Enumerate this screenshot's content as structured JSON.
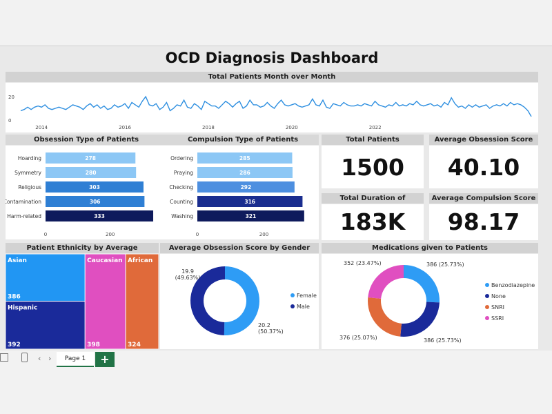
{
  "dashboard": {
    "title": "OCD Diagnosis Dashboard"
  },
  "headers": {
    "monthly": "Total Patients Month over Month",
    "obsession": "Obsession Type of Patients",
    "compulsion": "Compulsion Type of Patients",
    "total_patients": "Total Patients",
    "avg_obsession": "Average Obsession Score",
    "total_duration": "Total Duration of Symptoms",
    "avg_compulsion": "Average Compulsion Score",
    "ethnicity": "Patient Ethnicity by Average Obsession Score",
    "gender": "Average Obsession Score by Gender",
    "medications": "Medications given to Patients"
  },
  "kpis": {
    "total_patients": "1500",
    "avg_obsession": "40.10",
    "total_duration": "183K",
    "avg_compulsion": "98.17"
  },
  "footer": {
    "page_tab": "Page 1",
    "add_label": "+"
  },
  "colors": {
    "line": "#2e8fe0",
    "bars_light": "#8cc7f5",
    "bars_mid": "#2f7fd4",
    "bars_dark": "#1a2d8f",
    "bars_darkest": "#0e1a5c",
    "asian": "#2196f3",
    "hispanic": "#1a2a9a",
    "caucasian": "#e04fc0",
    "african": "#e06a3a",
    "female": "#2e9cf5",
    "male": "#1a2a9a",
    "benzo": "#2e9cf5",
    "none": "#1a2a9a",
    "snri": "#e06a3a",
    "ssri": "#e04fc0"
  },
  "chart_data": [
    {
      "id": "monthly",
      "type": "line",
      "title": "Total Patients Month over Month",
      "x_ticks": [
        "2014",
        "2016",
        "2018",
        "2020",
        "2022"
      ],
      "y_ticks": [
        "0",
        "20"
      ],
      "ylim": [
        0,
        20
      ],
      "x_start": 2013.5,
      "x_step": 0.0833,
      "values": [
        8,
        9,
        11,
        9,
        11,
        12,
        11,
        13,
        10,
        9,
        10,
        11,
        10,
        9,
        11,
        13,
        12,
        11,
        9,
        12,
        14,
        11,
        13,
        10,
        12,
        9,
        10,
        13,
        11,
        12,
        14,
        10,
        15,
        13,
        11,
        16,
        20,
        13,
        12,
        14,
        9,
        11,
        15,
        8,
        10,
        13,
        12,
        17,
        11,
        10,
        14,
        12,
        9,
        16,
        14,
        12,
        12,
        10,
        13,
        16,
        14,
        11,
        14,
        16,
        10,
        12,
        17,
        13,
        13,
        11,
        12,
        15,
        12,
        10,
        14,
        17,
        13,
        12,
        13,
        14,
        12,
        11,
        12,
        13,
        18,
        13,
        12,
        17,
        11,
        10,
        14,
        13,
        12,
        15,
        13,
        12,
        12,
        13,
        12,
        14,
        13,
        12,
        16,
        13,
        12,
        11,
        13,
        12,
        15,
        12,
        13,
        12,
        14,
        13,
        16,
        13,
        12,
        13,
        14,
        12,
        13,
        11,
        15,
        13,
        19,
        14,
        11,
        12,
        10,
        13,
        11,
        13,
        11,
        12,
        13,
        10,
        12,
        13,
        12,
        14,
        12,
        15,
        13,
        14,
        13,
        11,
        8,
        3
      ]
    },
    {
      "id": "obsession",
      "type": "bar",
      "orientation": "horizontal",
      "title": "Obsession Type of Patients",
      "categories": [
        "Hoarding",
        "Symmetry",
        "Religious",
        "Contamination",
        "Harm-related"
      ],
      "values": [
        278,
        280,
        303,
        306,
        333
      ],
      "x_ticks": [
        "0",
        "200"
      ],
      "xlim": [
        0,
        350
      ]
    },
    {
      "id": "compulsion",
      "type": "bar",
      "orientation": "horizontal",
      "title": "Compulsion Type of Patients",
      "categories": [
        "Ordering",
        "Praying",
        "Checking",
        "Counting",
        "Washing"
      ],
      "values": [
        285,
        286,
        292,
        316,
        321
      ],
      "x_ticks": [
        "0",
        "200"
      ],
      "xlim": [
        0,
        340
      ]
    },
    {
      "id": "ethnicity",
      "type": "treemap",
      "title": "Patient Ethnicity by Average Obsession Score",
      "categories": [
        "Asian",
        "Hispanic",
        "Caucasian",
        "African"
      ],
      "values": [
        386,
        392,
        398,
        324
      ]
    },
    {
      "id": "gender",
      "type": "pie",
      "subtype": "donut",
      "title": "Average Obsession Score by Gender",
      "categories": [
        "Female",
        "Male"
      ],
      "values": [
        20.2,
        19.9
      ],
      "labels": [
        "20.2\n(50.37%)",
        "19.9\n(49.63%)"
      ],
      "legend_position": "right"
    },
    {
      "id": "medications",
      "type": "pie",
      "subtype": "donut",
      "title": "Medications given to Patients",
      "categories": [
        "Benzodiazepine",
        "None",
        "SNRI",
        "SSRI"
      ],
      "values": [
        386,
        386,
        376,
        352
      ],
      "labels": [
        "386 (25.73%)",
        "386 (25.73%)",
        "376 (25.07%)",
        "352 (23.47%)"
      ],
      "legend_position": "right"
    }
  ]
}
